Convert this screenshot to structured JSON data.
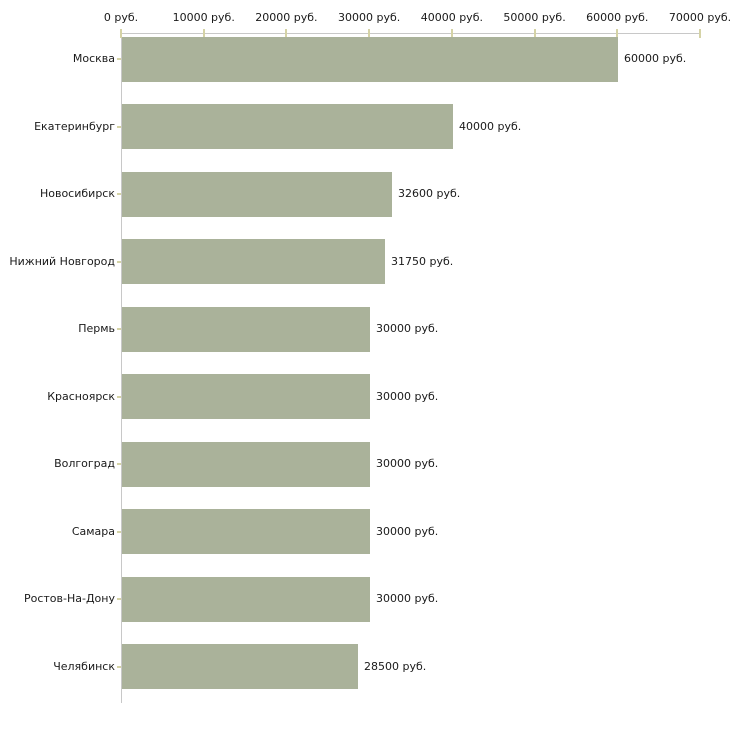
{
  "chart_data": {
    "type": "bar",
    "orientation": "horizontal",
    "title": "",
    "xlabel": "",
    "ylabel": "",
    "grid": false,
    "legend": null,
    "categories": [
      "Москва",
      "Екатеринбург",
      "Новосибирск",
      "Нижний Новгород",
      "Пермь",
      "Красноярск",
      "Волгоград",
      "Самара",
      "Ростов-На-Дону",
      "Челябинск"
    ],
    "values": [
      60000,
      40000,
      32600,
      31750,
      30000,
      30000,
      30000,
      30000,
      30000,
      28500
    ],
    "value_labels": [
      "60000 руб.",
      "40000 руб.",
      "32600 руб.",
      "31750 руб.",
      "30000 руб.",
      "30000 руб.",
      "30000 руб.",
      "30000 руб.",
      "30000 руб.",
      "28500 руб."
    ],
    "xlim": [
      0,
      70000
    ],
    "x_ticks": [
      0,
      10000,
      20000,
      30000,
      40000,
      50000,
      60000,
      70000
    ],
    "x_tick_labels": [
      "0 руб.",
      "10000 руб.",
      "20000 руб.",
      "30000 руб.",
      "40000 руб.",
      "50000 руб.",
      "60000 руб.",
      "70000 руб."
    ],
    "colors": {
      "bar_fill": "#aab29a",
      "axis_line": "#c8c8c8",
      "tick_mark": "#d5d3a6",
      "text": "#1a1a1a",
      "background": "#ffffff"
    }
  }
}
